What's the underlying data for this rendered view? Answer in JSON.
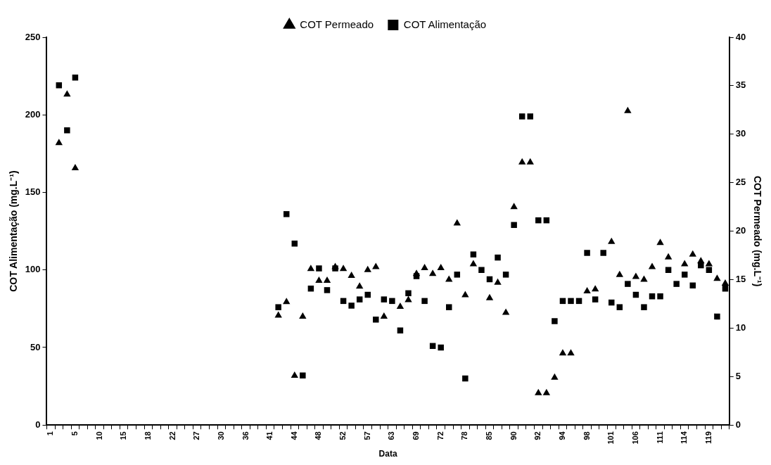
{
  "chart_data": {
    "type": "scatter",
    "xlabel": "Data",
    "ylabel": "COT Alimentação (mg.L⁻¹)",
    "y2label": "COT Permeado (mg.L⁻¹)",
    "categories": [
      "1",
      null,
      null,
      "5",
      null,
      null,
      "10",
      null,
      null,
      "15",
      null,
      null,
      "18",
      null,
      null,
      "22",
      null,
      null,
      "27",
      null,
      null,
      "30",
      null,
      null,
      "36",
      null,
      null,
      "41",
      null,
      null,
      "44",
      null,
      null,
      "48",
      null,
      null,
      "52",
      null,
      null,
      "57",
      null,
      null,
      "63",
      null,
      null,
      "69",
      null,
      null,
      "72",
      null,
      null,
      "78",
      null,
      null,
      "85",
      null,
      null,
      "90",
      null,
      null,
      "92",
      null,
      null,
      "94",
      null,
      null,
      "98",
      null,
      null,
      "101",
      null,
      null,
      "106",
      null,
      null,
      "111",
      null,
      null,
      "114",
      null,
      null,
      "119",
      null,
      null
    ],
    "series": [
      {
        "name": "COT Alimentação",
        "color": "#000000",
        "marker": "square",
        "values": [
          null,
          219,
          190,
          224,
          null,
          null,
          null,
          null,
          null,
          null,
          null,
          null,
          null,
          null,
          null,
          null,
          null,
          null,
          null,
          null,
          null,
          null,
          null,
          null,
          null,
          null,
          null,
          null,
          76,
          136,
          117,
          32,
          88,
          101,
          87,
          101,
          80,
          77,
          81,
          84,
          68,
          81,
          80,
          61,
          85,
          96,
          80,
          51,
          50,
          76,
          97,
          30,
          110,
          100,
          94,
          108,
          97,
          129,
          199,
          199,
          132,
          132,
          67,
          80,
          80,
          80,
          111,
          81,
          111,
          79,
          76,
          91,
          84,
          76,
          83,
          83,
          100,
          91,
          97,
          90,
          103,
          100,
          70,
          88
        ]
      },
      {
        "name": "COT Permeado",
        "color": "#000000",
        "marker": "triangle",
        "axis": "y2",
        "values": [
          null,
          29.1,
          34.1,
          26.5,
          null,
          null,
          null,
          null,
          null,
          null,
          null,
          null,
          null,
          null,
          null,
          null,
          null,
          null,
          null,
          null,
          null,
          null,
          null,
          null,
          null,
          null,
          null,
          null,
          11.3,
          12.7,
          5.1,
          11.2,
          16.1,
          14.9,
          14.9,
          16.3,
          16.1,
          15.4,
          14.3,
          16.0,
          16.3,
          11.2,
          null,
          12.2,
          12.9,
          15.6,
          16.2,
          15.6,
          16.2,
          15.0,
          20.8,
          13.4,
          16.6,
          null,
          13.1,
          14.7,
          11.6,
          22.5,
          27.1,
          27.1,
          3.3,
          3.3,
          4.9,
          7.4,
          7.4,
          null,
          13.8,
          14.0,
          null,
          18.9,
          15.5,
          32.4,
          15.3,
          15.0,
          16.3,
          18.8,
          17.3,
          null,
          16.6,
          17.6,
          16.9,
          16.6,
          15.1,
          14.6
        ]
      }
    ],
    "ylim": [
      0,
      250
    ],
    "yticks": [
      0,
      50,
      100,
      150,
      200,
      250
    ],
    "y2lim": [
      0,
      40
    ],
    "y2ticks": [
      0,
      5,
      10,
      15,
      20,
      25,
      30,
      35,
      40
    ],
    "grid": false,
    "legend": "top"
  }
}
